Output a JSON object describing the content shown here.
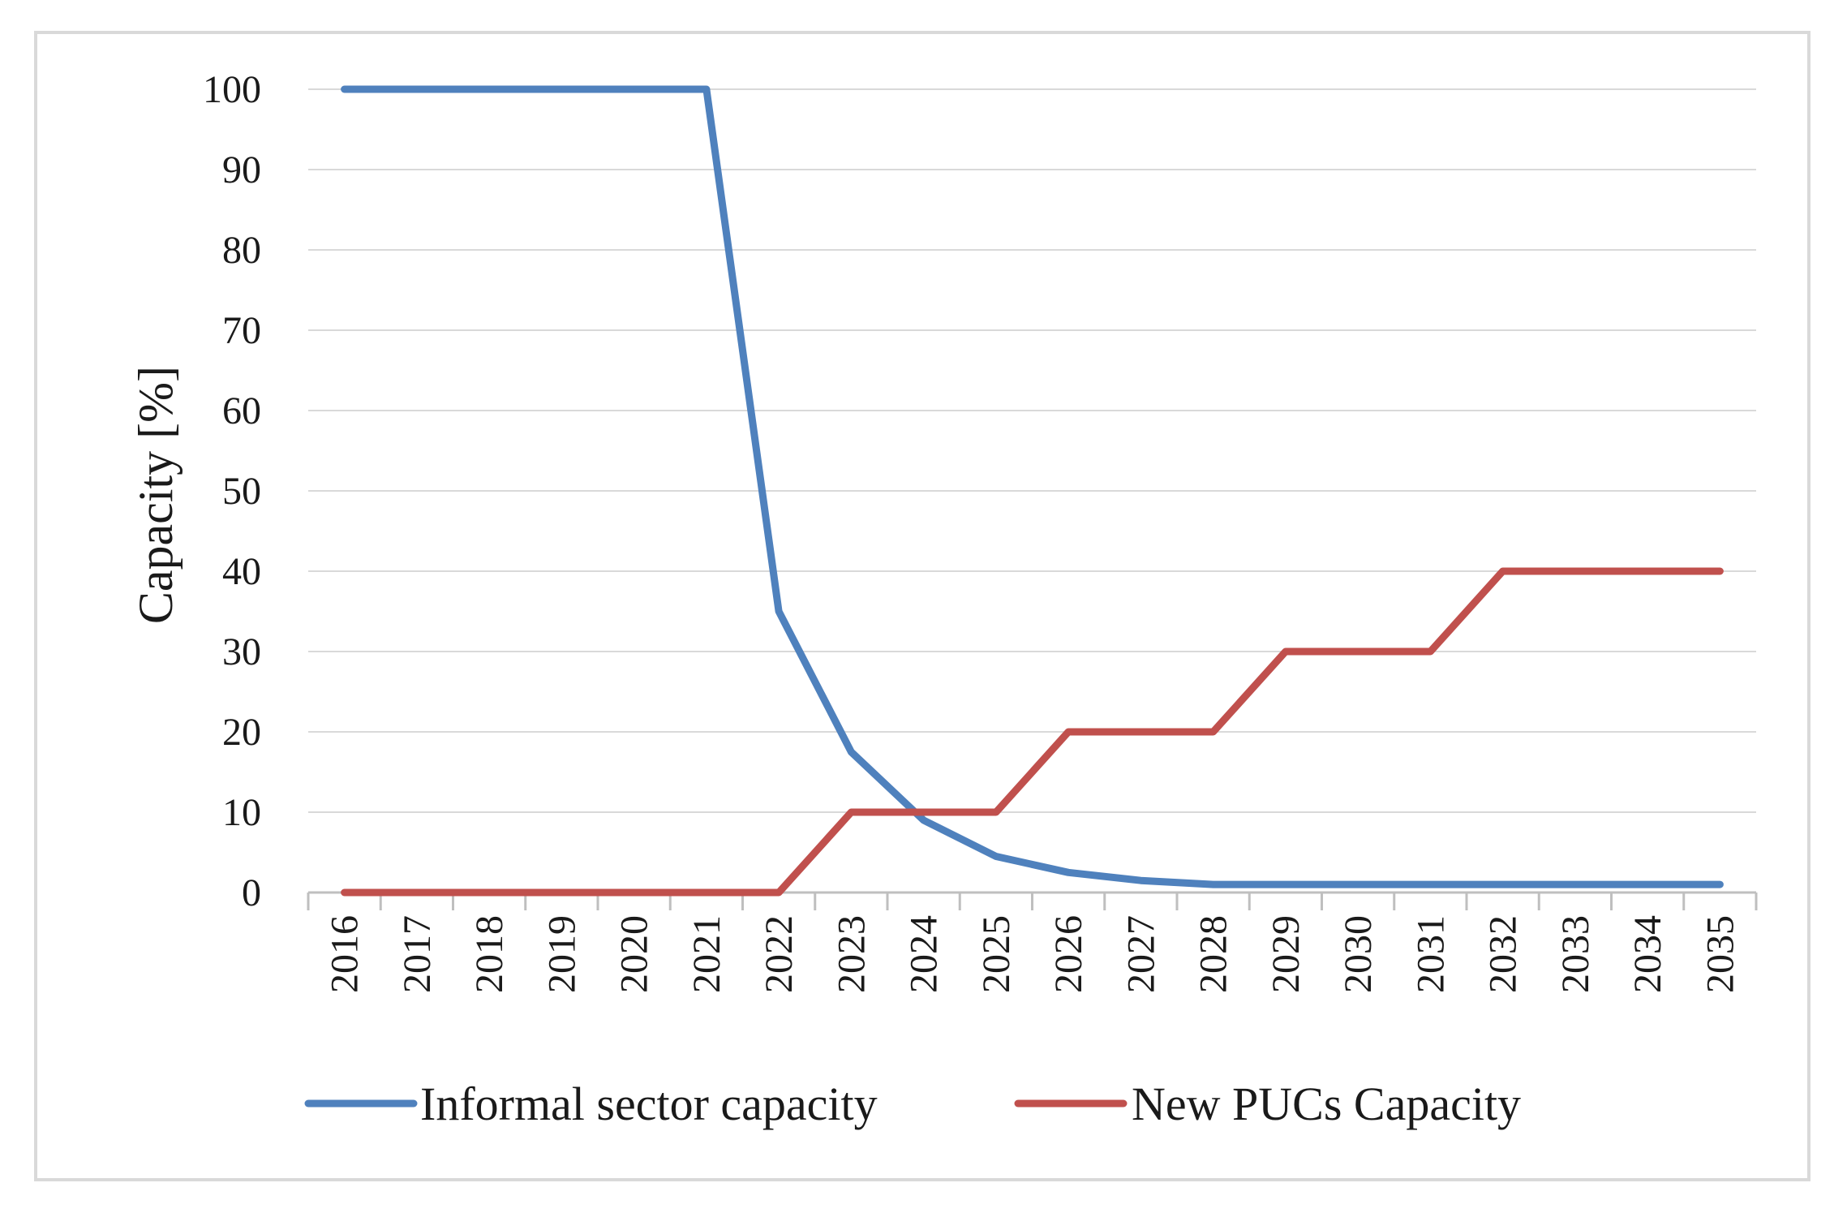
{
  "chart_data": {
    "type": "line",
    "title": "",
    "xlabel": "",
    "ylabel": "Capacity [%]",
    "ylim": [
      0,
      100
    ],
    "yticks": [
      0,
      10,
      20,
      30,
      40,
      50,
      60,
      70,
      80,
      90,
      100
    ],
    "grid": true,
    "legend_position": "bottom",
    "categories": [
      "2016",
      "2017",
      "2018",
      "2019",
      "2020",
      "2021",
      "2022",
      "2023",
      "2024",
      "2025",
      "2026",
      "2027",
      "2028",
      "2029",
      "2030",
      "2031",
      "2032",
      "2033",
      "2034",
      "2035"
    ],
    "series": [
      {
        "name": "Informal sector capacity",
        "color": "#4f81bd",
        "values": [
          100,
          100,
          100,
          100,
          100,
          100,
          35,
          17.5,
          9,
          4.5,
          2.5,
          1.5,
          1,
          1,
          1,
          1,
          1,
          1,
          1,
          1
        ]
      },
      {
        "name": "New PUCs Capacity",
        "color": "#c0504d",
        "values": [
          0,
          0,
          0,
          0,
          0,
          0,
          0,
          10,
          10,
          10,
          20,
          20,
          20,
          30,
          30,
          30,
          40,
          40,
          40,
          40
        ]
      }
    ]
  }
}
